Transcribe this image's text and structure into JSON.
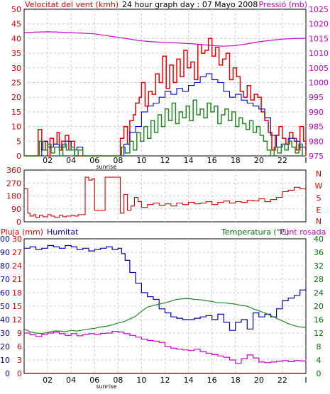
{
  "colors": {
    "wind": "#dd0000",
    "gust": "#ee0000",
    "average": "#0000cc",
    "wind_dir": "#dd0000",
    "pressure": "#cc00cc",
    "rain": "#dd0000",
    "humidity": "#0000aa",
    "temperature": "#228822",
    "dewpoint": "#cc00cc",
    "grid": "#cccccc",
    "green_label": "#007700"
  },
  "header": {
    "wind_label": "Velocitat del vent (kmh)",
    "title": "24 hour graph day : 07 Mayo 2008",
    "pressure_label": "Pressió (mb)"
  },
  "middle": {
    "compass": [
      "N",
      "W",
      "S",
      "E",
      "N"
    ]
  },
  "bottom": {
    "rain_label": "Pluja (mm)",
    "humidity_label": "Humitat",
    "temp_label": "Temperatura (°C)",
    "dew_label": "Punt rosada"
  },
  "x_axis": {
    "tick_labels": [
      "02",
      "04",
      "06",
      "08",
      "10",
      "12",
      "14",
      "16",
      "18",
      "20",
      "22",
      "I"
    ],
    "sunrise_label": "sunrise"
  },
  "chart_data": [
    {
      "type": "line",
      "name": "wind_pressure",
      "x_unit": "hour",
      "xlim": [
        0,
        24
      ],
      "yleft": {
        "label": "Velocitat del vent (kmh)",
        "lim": [
          0,
          50
        ],
        "ticks": [
          0,
          5,
          10,
          15,
          20,
          25,
          30,
          35,
          40,
          45,
          50
        ]
      },
      "yright": {
        "label": "Pressió (mb)",
        "lim": [
          975,
          1025
        ],
        "ticks": [
          975,
          980,
          985,
          990,
          995,
          1000,
          1005,
          1010,
          1015,
          1020,
          1025
        ]
      },
      "series": [
        {
          "key": "gust",
          "axis": "left",
          "x": [
            0,
            1.0,
            1.2,
            1.5,
            1.8,
            2.0,
            2.2,
            2.5,
            2.8,
            3.0,
            3.2,
            3.5,
            3.8,
            4.0,
            4.3,
            4.7,
            5.0,
            6.0,
            7.0,
            7.5,
            7.8,
            8.0,
            8.2,
            8.5,
            8.8,
            9.0,
            9.3,
            9.5,
            9.8,
            10.0,
            10.3,
            10.6,
            10.9,
            11.2,
            11.5,
            11.8,
            12.1,
            12.4,
            12.7,
            13.0,
            13.3,
            13.6,
            13.9,
            14.2,
            14.5,
            14.8,
            15.1,
            15.4,
            15.7,
            16.0,
            16.3,
            16.6,
            16.9,
            17.2,
            17.5,
            17.8,
            18.1,
            18.4,
            18.7,
            19.0,
            19.3,
            19.6,
            19.9,
            20.2,
            20.5,
            20.8,
            21.1,
            21.4,
            21.7,
            22.0,
            22.3,
            22.6,
            22.9,
            23.2,
            23.5,
            23.8,
            24.0
          ],
          "y": [
            0,
            0,
            9,
            2,
            5,
            0,
            6,
            4,
            8,
            2,
            5,
            7,
            2,
            5,
            0,
            0,
            0,
            0,
            0,
            0,
            0,
            0,
            6,
            10,
            4,
            12,
            14,
            18,
            20,
            25,
            17,
            22,
            21,
            28,
            25,
            34,
            23,
            31,
            25,
            33,
            27,
            36,
            30,
            32,
            26,
            38,
            35,
            36,
            40,
            34,
            37,
            31,
            33,
            35,
            26,
            30,
            27,
            22,
            20,
            24,
            19,
            21,
            20,
            15,
            12,
            8,
            2,
            7,
            10,
            6,
            4,
            8,
            6,
            2,
            10,
            5,
            0
          ]
        },
        {
          "key": "average",
          "axis": "left",
          "x": [
            0,
            1.0,
            1.5,
            2.0,
            2.5,
            3.0,
            3.5,
            4.0,
            4.5,
            5.0,
            6.0,
            7.0,
            8.0,
            8.5,
            9.0,
            9.5,
            10.0,
            10.5,
            11.0,
            11.5,
            12.0,
            12.5,
            13.0,
            13.5,
            14.0,
            14.5,
            15.0,
            15.5,
            16.0,
            16.5,
            17.0,
            17.5,
            18.0,
            18.5,
            19.0,
            19.5,
            20.0,
            20.5,
            21.0,
            21.5,
            22.0,
            22.5,
            23.0,
            23.5,
            24.0
          ],
          "y": [
            0,
            0,
            5,
            3,
            4,
            3,
            5,
            2,
            3,
            0,
            0,
            0,
            0,
            4,
            8,
            10,
            15,
            17,
            18,
            20,
            22,
            21,
            23,
            22,
            24,
            25,
            27,
            28,
            26,
            25,
            22,
            20,
            21,
            19,
            18,
            17,
            16,
            13,
            7,
            3,
            4,
            6,
            5,
            3,
            2
          ]
        },
        {
          "key": "wind",
          "axis": "left",
          "x": [
            0,
            1.0,
            1.3,
            1.6,
            2.0,
            2.3,
            2.6,
            3.0,
            3.3,
            3.6,
            4.0,
            4.3,
            4.6,
            5.0,
            8.0,
            8.3,
            8.6,
            9.0,
            9.3,
            9.6,
            9.9,
            10.2,
            10.5,
            10.8,
            11.1,
            11.4,
            11.7,
            12.0,
            12.3,
            12.6,
            12.9,
            13.2,
            13.5,
            13.8,
            14.1,
            14.4,
            14.7,
            15.0,
            15.3,
            15.6,
            15.9,
            16.2,
            16.5,
            16.8,
            17.1,
            17.4,
            17.7,
            18.0,
            18.3,
            18.6,
            18.9,
            19.2,
            19.5,
            19.8,
            20.1,
            20.4,
            20.7,
            21.0,
            21.3,
            21.6,
            21.9,
            22.2,
            22.5,
            22.8,
            23.1,
            23.4,
            23.7,
            24.0
          ],
          "y": [
            0,
            0,
            5,
            2,
            4,
            1,
            3,
            0,
            4,
            2,
            3,
            0,
            2,
            0,
            0,
            3,
            1,
            5,
            2,
            8,
            5,
            10,
            6,
            12,
            8,
            14,
            10,
            16,
            12,
            18,
            11,
            15,
            13,
            17,
            12,
            19,
            14,
            16,
            13,
            18,
            15,
            17,
            11,
            14,
            16,
            12,
            15,
            10,
            13,
            11,
            9,
            12,
            8,
            10,
            7,
            5,
            2,
            0,
            3,
            1,
            4,
            2,
            5,
            3,
            1,
            4,
            0,
            0
          ]
        },
        {
          "key": "pressure",
          "axis": "right",
          "x": [
            0,
            1,
            2,
            3,
            4,
            5,
            6,
            7,
            8,
            9,
            10,
            11,
            12,
            13,
            14,
            15,
            16,
            17,
            18,
            19,
            20,
            21,
            22,
            23,
            24
          ],
          "y": [
            1017.0,
            1017.2,
            1017.3,
            1017.2,
            1017.0,
            1016.8,
            1016.6,
            1016.0,
            1015.4,
            1014.8,
            1014.2,
            1013.9,
            1013.7,
            1013.5,
            1013.3,
            1013.0,
            1012.6,
            1012.4,
            1012.6,
            1013.2,
            1013.9,
            1014.4,
            1014.8,
            1015.0,
            1015.1
          ]
        }
      ]
    },
    {
      "type": "line",
      "name": "wind_direction",
      "x_unit": "hour",
      "xlim": [
        0,
        24
      ],
      "ylim": [
        0,
        360
      ],
      "yticks": [
        0,
        90,
        180,
        270,
        360
      ],
      "series": [
        {
          "key": "wind_dir",
          "x": [
            0,
            0.3,
            0.5,
            0.8,
            1.0,
            1.3,
            1.6,
            2.0,
            2.3,
            2.6,
            3.0,
            3.3,
            3.6,
            4.0,
            4.3,
            4.6,
            5.0,
            5.2,
            5.5,
            5.8,
            6.0,
            6.3,
            6.6,
            6.9,
            7.0,
            7.3,
            7.6,
            7.9,
            8.2,
            8.5,
            8.8,
            9.1,
            9.4,
            9.7,
            10.0,
            10.5,
            11.0,
            11.5,
            12.0,
            12.5,
            13.0,
            13.5,
            14.0,
            14.5,
            15.0,
            15.5,
            16.0,
            16.5,
            17.0,
            17.5,
            18.0,
            18.5,
            19.0,
            19.5,
            20.0,
            20.5,
            21.0,
            21.5,
            22.0,
            22.5,
            23.0,
            23.5,
            24.0
          ],
          "y": [
            230,
            60,
            40,
            50,
            30,
            45,
            35,
            50,
            40,
            30,
            45,
            35,
            40,
            45,
            40,
            50,
            50,
            310,
            290,
            300,
            80,
            80,
            80,
            310,
            310,
            310,
            310,
            310,
            60,
            190,
            80,
            110,
            170,
            140,
            100,
            120,
            130,
            115,
            125,
            110,
            130,
            120,
            135,
            125,
            130,
            140,
            120,
            135,
            145,
            130,
            140,
            135,
            150,
            145,
            160,
            140,
            155,
            170,
            210,
            220,
            240,
            230,
            230
          ]
        }
      ]
    },
    {
      "type": "line",
      "name": "rain_humidity_temperature",
      "x_unit": "hour",
      "xlim": [
        0,
        24
      ],
      "y_rain": {
        "label": "Pluja (mm)",
        "lim": [
          0,
          30
        ],
        "ticks": [
          0,
          3,
          6,
          9,
          12,
          15,
          18,
          21,
          24,
          27,
          30
        ]
      },
      "y_humidity": {
        "label": "Humitat",
        "lim": [
          0,
          100
        ],
        "ticks": [
          0,
          10,
          20,
          30,
          40,
          50,
          60,
          70,
          80,
          90,
          100
        ]
      },
      "y_temp": {
        "label": "Temperatura (°C)",
        "lim": [
          0,
          40
        ],
        "ticks": [
          0,
          4,
          8,
          12,
          16,
          20,
          24,
          28,
          32,
          36,
          40
        ]
      },
      "series": [
        {
          "key": "humidity",
          "axis": "humidity",
          "x": [
            0,
            0.5,
            1.0,
            1.5,
            2.0,
            2.5,
            3.0,
            3.5,
            4.0,
            4.5,
            5.0,
            5.5,
            6.0,
            6.5,
            7.0,
            7.5,
            8.0,
            8.3,
            8.6,
            9.0,
            9.5,
            10.0,
            10.5,
            11.0,
            11.5,
            12.0,
            12.5,
            13.0,
            13.5,
            14.0,
            14.5,
            15.0,
            15.5,
            16.0,
            16.5,
            17.0,
            17.5,
            18.0,
            18.5,
            19.0,
            19.5,
            20.0,
            20.5,
            21.0,
            21.5,
            22.0,
            22.5,
            23.0,
            23.5,
            24.0
          ],
          "y": [
            93,
            94,
            92,
            93,
            95,
            94,
            93,
            95,
            94,
            92,
            93,
            91,
            92,
            93,
            94,
            92,
            93,
            89,
            84,
            75,
            67,
            60,
            57,
            55,
            48,
            45,
            42,
            41,
            40,
            40,
            41,
            42,
            43,
            40,
            44,
            38,
            32,
            38,
            40,
            33,
            45,
            42,
            44,
            42,
            48,
            54,
            56,
            58,
            62,
            64
          ]
        },
        {
          "key": "temperature",
          "axis": "temp",
          "x": [
            0,
            0.5,
            1.0,
            1.5,
            2.0,
            2.5,
            3.0,
            3.5,
            4.0,
            4.5,
            5.0,
            5.5,
            6.0,
            6.5,
            7.0,
            7.5,
            8.0,
            8.5,
            9.0,
            9.5,
            10.0,
            10.5,
            11.0,
            11.5,
            12.0,
            12.5,
            13.0,
            13.5,
            14.0,
            14.5,
            15.0,
            15.5,
            16.0,
            16.5,
            17.0,
            17.5,
            18.0,
            18.5,
            19.0,
            19.5,
            20.0,
            20.5,
            21.0,
            21.5,
            22.0,
            22.5,
            23.0,
            23.5,
            24.0
          ],
          "y": [
            13.2,
            12.4,
            12.0,
            11.8,
            12.2,
            12.6,
            12.6,
            12.4,
            12.8,
            12.6,
            12.9,
            13.2,
            13.4,
            13.8,
            14.0,
            14.4,
            15.0,
            15.4,
            16.2,
            17.0,
            18.5,
            19.7,
            20.2,
            20.6,
            21.0,
            21.5,
            22.0,
            22.2,
            22.3,
            22.0,
            21.9,
            21.6,
            21.4,
            21.0,
            21.0,
            20.8,
            20.6,
            20.2,
            20.0,
            19.2,
            18.6,
            18.0,
            17.2,
            16.4,
            15.6,
            14.8,
            14.2,
            13.8,
            13.7
          ]
        },
        {
          "key": "dewpoint",
          "axis": "temp",
          "x": [
            0,
            0.5,
            1.0,
            1.5,
            2.0,
            2.5,
            3.0,
            3.5,
            4.0,
            4.5,
            5.0,
            5.5,
            6.0,
            6.5,
            7.0,
            7.5,
            8.0,
            8.5,
            9.0,
            9.5,
            10.0,
            10.5,
            11.0,
            11.5,
            12.0,
            12.5,
            13.0,
            13.5,
            14.0,
            14.5,
            15.0,
            15.5,
            16.0,
            16.5,
            17.0,
            17.5,
            18.0,
            18.5,
            19.0,
            19.5,
            20.0,
            20.5,
            21.0,
            21.5,
            22.0,
            22.5,
            23.0,
            23.5,
            24.0
          ],
          "y": [
            12.0,
            11.5,
            11.0,
            11.6,
            12.0,
            12.3,
            11.8,
            11.3,
            11.8,
            11.2,
            11.6,
            11.8,
            11.6,
            11.9,
            12.0,
            12.5,
            12.3,
            11.8,
            11.3,
            10.8,
            10.2,
            9.8,
            9.6,
            9.2,
            8.0,
            7.5,
            7.2,
            7.0,
            6.8,
            7.2,
            6.5,
            6.0,
            5.6,
            5.2,
            4.8,
            4.0,
            3.0,
            4.4,
            5.5,
            4.6,
            3.4,
            3.2,
            3.4,
            3.6,
            3.8,
            3.5,
            3.8,
            3.7,
            3.9
          ]
        },
        {
          "key": "rain",
          "axis": "rain",
          "x": [
            0,
            24
          ],
          "y": [
            0,
            0
          ]
        }
      ]
    }
  ]
}
